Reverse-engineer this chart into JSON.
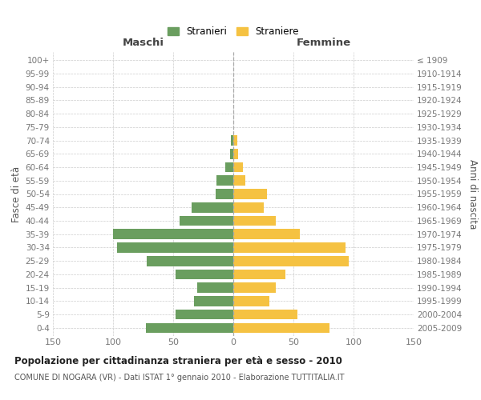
{
  "age_groups": [
    "0-4",
    "5-9",
    "10-14",
    "15-19",
    "20-24",
    "25-29",
    "30-34",
    "35-39",
    "40-44",
    "45-49",
    "50-54",
    "55-59",
    "60-64",
    "65-69",
    "70-74",
    "75-79",
    "80-84",
    "85-89",
    "90-94",
    "95-99",
    "100+"
  ],
  "birth_years": [
    "2005-2009",
    "2000-2004",
    "1995-1999",
    "1990-1994",
    "1985-1989",
    "1980-1984",
    "1975-1979",
    "1970-1974",
    "1965-1969",
    "1960-1964",
    "1955-1959",
    "1950-1954",
    "1945-1949",
    "1940-1944",
    "1935-1939",
    "1930-1934",
    "1925-1929",
    "1920-1924",
    "1915-1919",
    "1910-1914",
    "≤ 1909"
  ],
  "maschi": [
    73,
    48,
    33,
    30,
    48,
    72,
    97,
    100,
    45,
    35,
    15,
    14,
    7,
    3,
    2,
    0,
    0,
    0,
    0,
    0,
    0
  ],
  "femmine": [
    80,
    53,
    30,
    35,
    43,
    96,
    93,
    55,
    35,
    25,
    28,
    10,
    8,
    4,
    3,
    0,
    0,
    0,
    0,
    0,
    0
  ],
  "color_maschi": "#6a9e5f",
  "color_femmine": "#f5c242",
  "title": "Popolazione per cittadinanza straniera per età e sesso - 2010",
  "subtitle": "COMUNE DI NOGARA (VR) - Dati ISTAT 1° gennaio 2010 - Elaborazione TUTTITALIA.IT",
  "ylabel_left": "Fasce di età",
  "ylabel_right": "Anni di nascita",
  "label_maschi": "Maschi",
  "label_femmine": "Femmine",
  "legend_maschi": "Stranieri",
  "legend_femmine": "Straniere",
  "xlim": 150,
  "background_color": "#ffffff",
  "grid_color": "#cccccc",
  "bar_height": 0.75
}
